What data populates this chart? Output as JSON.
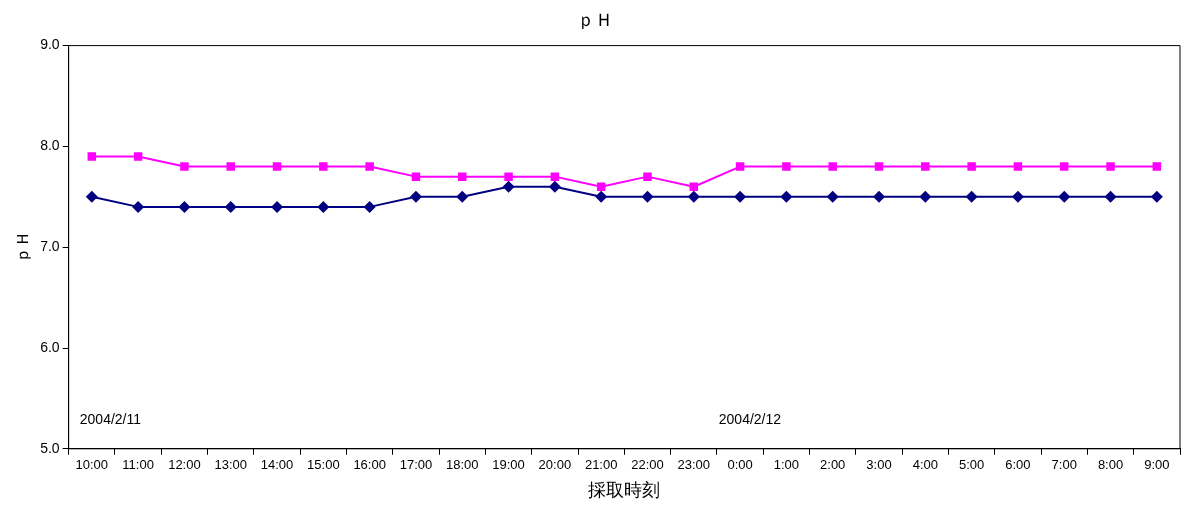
{
  "chart_data": {
    "type": "line",
    "title": "ｐＨ",
    "xlabel": "採取時刻",
    "ylabel": "ｐＨ",
    "categories": [
      "10:00",
      "11:00",
      "12:00",
      "13:00",
      "14:00",
      "15:00",
      "16:00",
      "17:00",
      "18:00",
      "19:00",
      "20:00",
      "21:00",
      "22:00",
      "23:00",
      "0:00",
      "1:00",
      "2:00",
      "3:00",
      "4:00",
      "5:00",
      "6:00",
      "7:00",
      "8:00",
      "9:00"
    ],
    "series": [
      {
        "color": "#ff00ff",
        "marker": "square",
        "values": [
          7.9,
          7.9,
          7.8,
          7.8,
          7.8,
          7.8,
          7.8,
          7.7,
          7.7,
          7.7,
          7.7,
          7.6,
          7.7,
          7.6,
          7.8,
          7.8,
          7.8,
          7.8,
          7.8,
          7.8,
          7.8,
          7.8,
          7.8,
          7.8
        ]
      },
      {
        "color": "#000080",
        "marker": "diamond",
        "values": [
          7.5,
          7.4,
          7.4,
          7.4,
          7.4,
          7.4,
          7.4,
          7.5,
          7.5,
          7.6,
          7.6,
          7.5,
          7.5,
          7.5,
          7.5,
          7.5,
          7.5,
          7.5,
          7.5,
          7.5,
          7.5,
          7.5,
          7.5,
          7.5
        ]
      }
    ],
    "ylim": [
      5,
      9
    ],
    "yticks": [
      {
        "value": 5,
        "label": "5.0"
      },
      {
        "value": 6,
        "label": "6.0"
      },
      {
        "value": 7,
        "label": "7.0"
      },
      {
        "value": 8,
        "label": "8.0"
      },
      {
        "value": 9,
        "label": "9.0"
      }
    ],
    "grid": false,
    "legend": false,
    "line_style": "solid",
    "annotations": [
      "2004/2/11",
      "2004/2/12"
    ]
  }
}
